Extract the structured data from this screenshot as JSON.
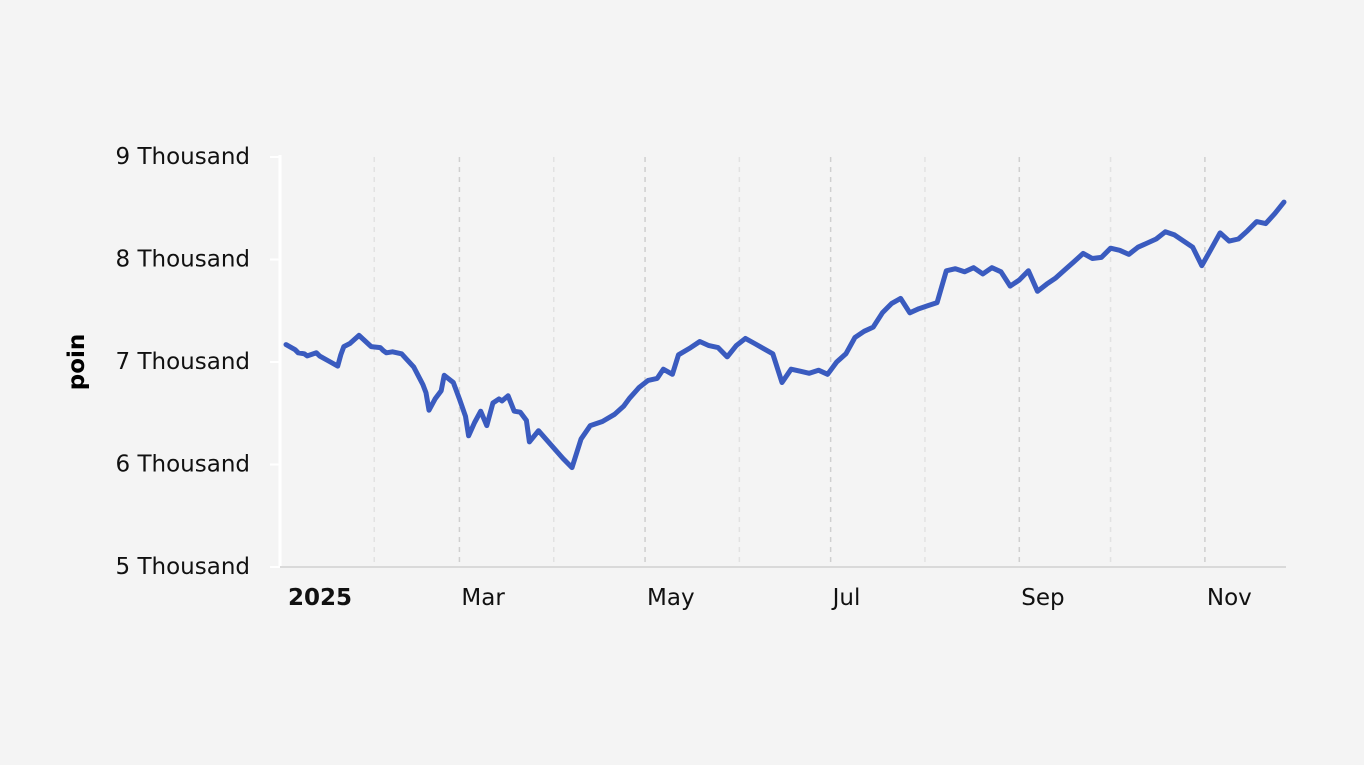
{
  "chart_data": {
    "type": "line",
    "title": "",
    "ylabel": "poin",
    "xlabel": "",
    "ylim": [
      5000,
      9000
    ],
    "xlim": [
      "2025-01-03",
      "2025-11-27"
    ],
    "y_ticks": [
      {
        "value": 9000,
        "label": "9 Thousand"
      },
      {
        "value": 8000,
        "label": "8 Thousand"
      },
      {
        "value": 7000,
        "label": "7 Thousand"
      },
      {
        "value": 6000,
        "label": "6 Thousand"
      },
      {
        "value": 5000,
        "label": "5 Thousand"
      }
    ],
    "x_ticks": [
      {
        "date": "2025-01-01",
        "label": "2025",
        "bold": true
      },
      {
        "date": "2025-03-01",
        "label": "Mar",
        "bold": false
      },
      {
        "date": "2025-05-01",
        "label": "May",
        "bold": false
      },
      {
        "date": "2025-07-01",
        "label": "Jul",
        "bold": false
      },
      {
        "date": "2025-09-01",
        "label": "Sep",
        "bold": false
      },
      {
        "date": "2025-11-01",
        "label": "Nov",
        "bold": false
      }
    ],
    "gridlines_major": [
      "2025-03-01",
      "2025-05-01",
      "2025-07-01",
      "2025-09-01",
      "2025-11-01"
    ],
    "gridlines_minor": [
      "2025-02-01",
      "2025-04-01",
      "2025-06-01",
      "2025-08-01",
      "2025-10-01"
    ],
    "grid": true,
    "legend": "none",
    "series": [
      {
        "color": "#3a5bbf",
        "x": [
          "2025-01-03",
          "2025-01-06",
          "2025-01-07",
          "2025-01-09",
          "2025-01-10",
          "2025-01-13",
          "2025-01-14",
          "2025-01-17",
          "2025-01-20",
          "2025-01-21",
          "2025-01-22",
          "2025-01-24",
          "2025-01-27",
          "2025-01-31",
          "2025-02-03",
          "2025-02-04",
          "2025-02-05",
          "2025-02-07",
          "2025-02-10",
          "2025-02-14",
          "2025-02-17",
          "2025-02-18",
          "2025-02-19",
          "2025-02-21",
          "2025-02-23",
          "2025-02-24",
          "2025-02-27",
          "2025-03-01",
          "2025-03-03",
          "2025-03-04",
          "2025-03-06",
          "2025-03-08",
          "2025-03-10",
          "2025-03-12",
          "2025-03-14",
          "2025-03-15",
          "2025-03-17",
          "2025-03-19",
          "2025-03-21",
          "2025-03-23",
          "2025-03-24",
          "2025-03-27",
          "2025-04-04",
          "2025-04-07",
          "2025-04-10",
          "2025-04-13",
          "2025-04-17",
          "2025-04-21",
          "2025-04-24",
          "2025-04-26",
          "2025-04-29",
          "2025-05-02",
          "2025-05-05",
          "2025-05-07",
          "2025-05-10",
          "2025-05-12",
          "2025-05-16",
          "2025-05-19",
          "2025-05-22",
          "2025-05-25",
          "2025-05-28",
          "2025-05-31",
          "2025-06-03",
          "2025-06-06",
          "2025-06-09",
          "2025-06-12",
          "2025-06-15",
          "2025-06-18",
          "2025-06-21",
          "2025-06-24",
          "2025-06-27",
          "2025-06-30",
          "2025-07-03",
          "2025-07-06",
          "2025-07-09",
          "2025-07-12",
          "2025-07-15",
          "2025-07-18",
          "2025-07-21",
          "2025-07-24",
          "2025-07-27",
          "2025-07-30",
          "2025-08-02",
          "2025-08-05",
          "2025-08-08",
          "2025-08-11",
          "2025-08-14",
          "2025-08-17",
          "2025-08-20",
          "2025-08-23",
          "2025-08-26",
          "2025-08-29",
          "2025-09-01",
          "2025-09-04",
          "2025-09-07",
          "2025-09-10",
          "2025-09-13",
          "2025-09-16",
          "2025-09-19",
          "2025-09-22",
          "2025-09-25",
          "2025-09-28",
          "2025-10-01",
          "2025-10-04",
          "2025-10-07",
          "2025-10-10",
          "2025-10-13",
          "2025-10-16",
          "2025-10-19",
          "2025-10-22",
          "2025-10-25",
          "2025-10-28",
          "2025-10-31",
          "2025-11-03",
          "2025-11-06",
          "2025-11-09",
          "2025-11-12",
          "2025-11-15",
          "2025-11-18",
          "2025-11-21",
          "2025-11-24",
          "2025-11-27"
        ],
        "values": [
          7170,
          7120,
          7090,
          7080,
          7060,
          7090,
          7060,
          7010,
          6960,
          7070,
          7150,
          7180,
          7260,
          7150,
          7140,
          7110,
          7090,
          7100,
          7080,
          6950,
          6780,
          6700,
          6530,
          6640,
          6720,
          6870,
          6800,
          6640,
          6470,
          6280,
          6410,
          6520,
          6380,
          6600,
          6640,
          6620,
          6670,
          6520,
          6510,
          6430,
          6220,
          6330,
          6060,
          5970,
          6250,
          6380,
          6420,
          6490,
          6570,
          6650,
          6750,
          6820,
          6840,
          6930,
          6880,
          7070,
          7140,
          7200,
          7160,
          7140,
          7050,
          7160,
          7230,
          7180,
          7130,
          7080,
          6800,
          6930,
          6910,
          6890,
          6920,
          6880,
          7000,
          7080,
          7240,
          7300,
          7340,
          7480,
          7570,
          7620,
          7480,
          7520,
          7550,
          7580,
          7890,
          7910,
          7880,
          7920,
          7860,
          7920,
          7880,
          7740,
          7800,
          7890,
          7690,
          7760,
          7820,
          7900,
          7980,
          8060,
          8010,
          8020,
          8110,
          8090,
          8050,
          8120,
          8160,
          8200,
          8270,
          8240,
          8180,
          8120,
          7940,
          8100,
          8260,
          8180,
          8200,
          8280,
          8370,
          8350,
          8450,
          8560
        ]
      }
    ]
  }
}
